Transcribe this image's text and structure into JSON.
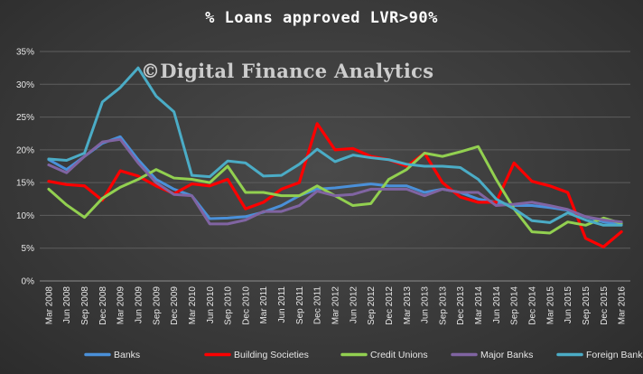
{
  "chart_data": {
    "type": "line",
    "title": "% Loans approved LVR>90%",
    "watermark": "©Digital Finance Analytics",
    "x": [
      "Mar 2008",
      "Jun 2008",
      "Sep 2008",
      "Dec 2008",
      "Mar 2009",
      "Jun 2009",
      "Sep 2009",
      "Dec 2009",
      "Mar 2010",
      "Jun 2010",
      "Sep 2010",
      "Dec 2010",
      "Mar 2011",
      "Jun 2011",
      "Sep 2011",
      "Dec 2011",
      "Mar 2012",
      "Jun 2012",
      "Sep 2012",
      "Dec 2012",
      "Mar 2013",
      "Jun 2013",
      "Sep 2013",
      "Dec 2013",
      "Mar 2014",
      "Jun 2014",
      "Sep 2014",
      "Dec 2014",
      "Mar 2015",
      "Jun 2015",
      "Sep 2015",
      "Dec 2015",
      "Mar 2016"
    ],
    "y_ticks": [
      "0%",
      "5%",
      "10%",
      "15%",
      "20%",
      "25%",
      "30%",
      "35%"
    ],
    "ylim": [
      0,
      35
    ],
    "gridlines": true,
    "legend_position": "bottom",
    "series": [
      {
        "name": "Banks",
        "color": "#4a90d9",
        "values": [
          18.5,
          17.0,
          19.0,
          21.0,
          22.0,
          18.5,
          15.5,
          14.0,
          13.0,
          9.5,
          9.6,
          9.8,
          10.5,
          11.5,
          13.0,
          14.0,
          14.2,
          14.5,
          14.8,
          14.5,
          14.5,
          13.5,
          14.0,
          13.5,
          12.5,
          12.0,
          11.5,
          11.5,
          11.2,
          10.8,
          9.8,
          9.0,
          8.6
        ]
      },
      {
        "name": "Building Societies",
        "color": "#ff0000",
        "values": [
          15.2,
          14.7,
          14.5,
          12.3,
          16.8,
          16.0,
          14.5,
          13.3,
          14.8,
          14.5,
          15.5,
          11.0,
          12.0,
          14.0,
          15.0,
          24.0,
          20.0,
          20.2,
          19.0,
          18.5,
          17.5,
          19.5,
          15.0,
          12.8,
          12.0,
          12.0,
          18.0,
          15.2,
          14.5,
          13.5,
          6.5,
          5.2,
          7.5
        ]
      },
      {
        "name": "Credit Unions",
        "color": "#92d050",
        "values": [
          14.0,
          11.6,
          9.7,
          12.6,
          14.3,
          15.5,
          17.0,
          15.7,
          15.5,
          15.0,
          17.5,
          13.5,
          13.5,
          13.0,
          13.0,
          14.5,
          13.0,
          11.5,
          11.8,
          15.5,
          17.0,
          19.5,
          19.0,
          19.7,
          20.5,
          15.5,
          11.0,
          7.5,
          7.3,
          9.0,
          8.5,
          9.6,
          8.8
        ]
      },
      {
        "name": "Major Banks",
        "color": "#8064a2",
        "values": [
          17.7,
          16.5,
          19.0,
          21.2,
          21.6,
          18.0,
          15.0,
          13.2,
          13.0,
          8.7,
          8.7,
          9.3,
          10.6,
          10.6,
          11.5,
          13.7,
          13.0,
          13.2,
          14.0,
          14.0,
          14.0,
          13.0,
          14.0,
          13.5,
          13.5,
          11.5,
          11.7,
          12.0,
          11.5,
          10.9,
          9.8,
          9.3,
          9.0
        ]
      },
      {
        "name": "Foreign Banks",
        "color": "#4bacc6",
        "values": [
          18.6,
          18.4,
          19.5,
          27.3,
          29.5,
          32.5,
          28.2,
          25.8,
          16.1,
          15.9,
          18.3,
          18.0,
          16.0,
          16.1,
          17.8,
          20.1,
          18.2,
          19.2,
          18.8,
          18.5,
          17.8,
          17.5,
          17.5,
          17.3,
          15.5,
          12.5,
          11.0,
          9.2,
          8.9,
          10.4,
          9.3,
          8.5,
          8.5
        ]
      }
    ]
  }
}
